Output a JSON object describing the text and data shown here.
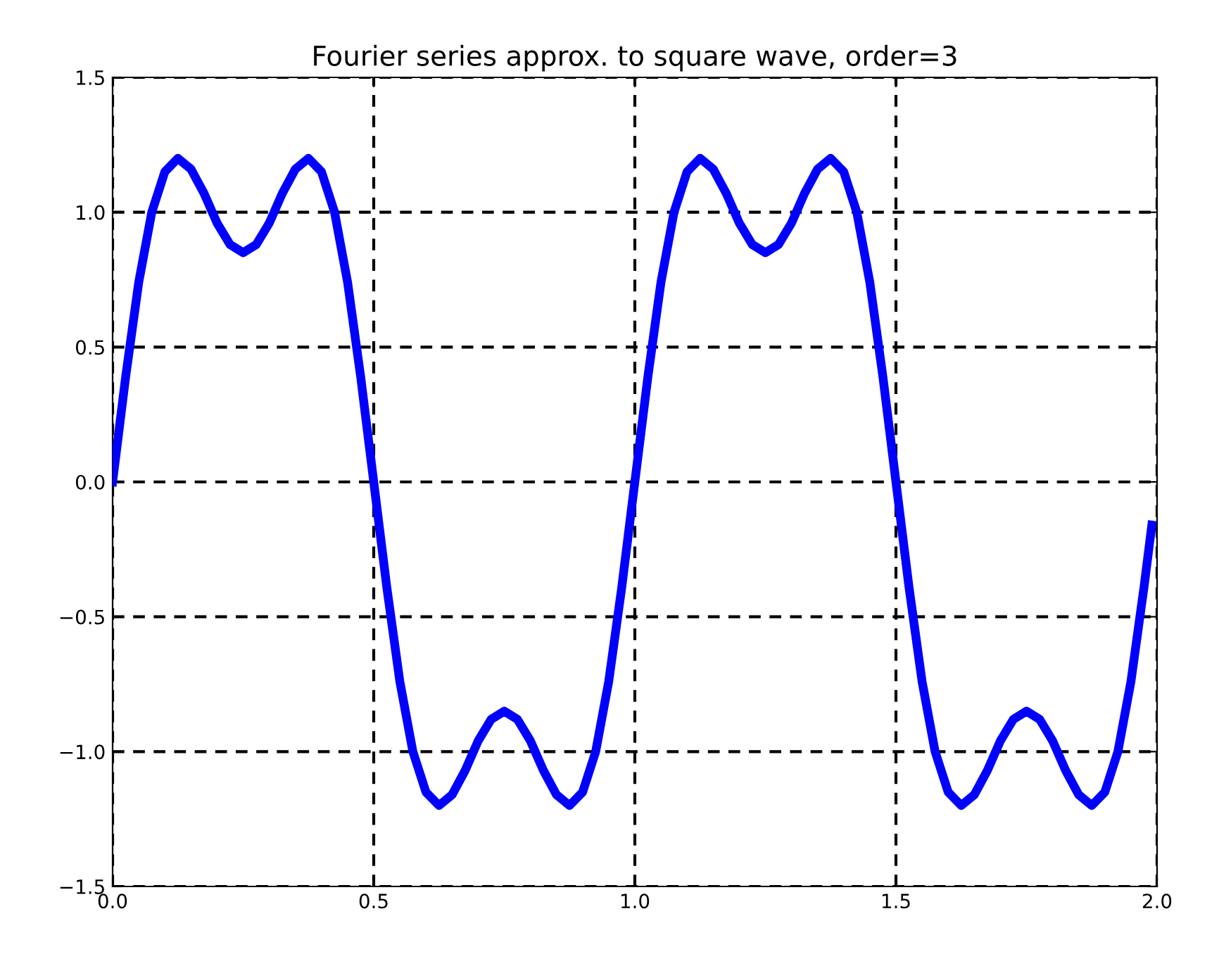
{
  "chart_data": {
    "type": "line",
    "title": "Fourier series approx. to square wave, order=3",
    "x": [
      0,
      0.025,
      0.05,
      0.075,
      0.1,
      0.125,
      0.15,
      0.175,
      0.2,
      0.225,
      0.25,
      0.275,
      0.3,
      0.325,
      0.35,
      0.375,
      0.4,
      0.425,
      0.45,
      0.475,
      0.5,
      0.525,
      0.55,
      0.575,
      0.6,
      0.625,
      0.65,
      0.675,
      0.7,
      0.725,
      0.75,
      0.775,
      0.8,
      0.825,
      0.85,
      0.875,
      0.9,
      0.925,
      0.95,
      0.975,
      1.0,
      1.025,
      1.05,
      1.075,
      1.1,
      1.125,
      1.15,
      1.175,
      1.2,
      1.225,
      1.25,
      1.275,
      1.3,
      1.325,
      1.35,
      1.375,
      1.4,
      1.425,
      1.45,
      1.475,
      1.5,
      1.525,
      1.55,
      1.575,
      1.6,
      1.625,
      1.65,
      1.675,
      1.7,
      1.725,
      1.75,
      1.775,
      1.8,
      1.825,
      1.85,
      1.875,
      1.9,
      1.925,
      1.95,
      1.975,
      1.99
    ],
    "series": [
      {
        "color": "#0000ff",
        "values": [
          0,
          0.39,
          0.74,
          1.0,
          1.15,
          1.2,
          1.16,
          1.07,
          0.96,
          0.88,
          0.85,
          0.88,
          0.96,
          1.07,
          1.16,
          1.2,
          1.15,
          1.0,
          0.74,
          0.39,
          0,
          -0.39,
          -0.74,
          -1.0,
          -1.15,
          -1.2,
          -1.16,
          -1.07,
          -0.96,
          -0.88,
          -0.85,
          -0.88,
          -0.96,
          -1.07,
          -1.16,
          -1.2,
          -1.15,
          -1.0,
          -0.74,
          -0.39,
          0,
          0.39,
          0.74,
          1.0,
          1.15,
          1.2,
          1.16,
          1.07,
          0.96,
          0.88,
          0.85,
          0.88,
          0.96,
          1.07,
          1.16,
          1.2,
          1.15,
          1.0,
          0.74,
          0.39,
          0,
          -0.39,
          -0.74,
          -1.0,
          -1.15,
          -1.2,
          -1.16,
          -1.07,
          -0.96,
          -0.88,
          -0.85,
          -0.88,
          -0.96,
          -1.07,
          -1.16,
          -1.2,
          -1.15,
          -1.0,
          -0.74,
          -0.39,
          -0.16
        ]
      }
    ],
    "xlim": [
      0,
      2
    ],
    "ylim": [
      -1.5,
      1.5
    ],
    "xticks": [
      {
        "value": 0,
        "label": "0.0"
      },
      {
        "value": 0.5,
        "label": "0.5"
      },
      {
        "value": 1,
        "label": "1.0"
      },
      {
        "value": 1.5,
        "label": "1.5"
      },
      {
        "value": 2,
        "label": "2.0"
      }
    ],
    "yticks": [
      {
        "value": -1.5,
        "label": "−1.5"
      },
      {
        "value": -1,
        "label": "−1.0"
      },
      {
        "value": -0.5,
        "label": "−0.5"
      },
      {
        "value": 0,
        "label": "0.0"
      },
      {
        "value": 0.5,
        "label": "0.5"
      },
      {
        "value": 1,
        "label": "1.0"
      },
      {
        "value": 1.5,
        "label": "1.5"
      }
    ],
    "grid": true,
    "marker": "none",
    "line_style": "solid"
  }
}
